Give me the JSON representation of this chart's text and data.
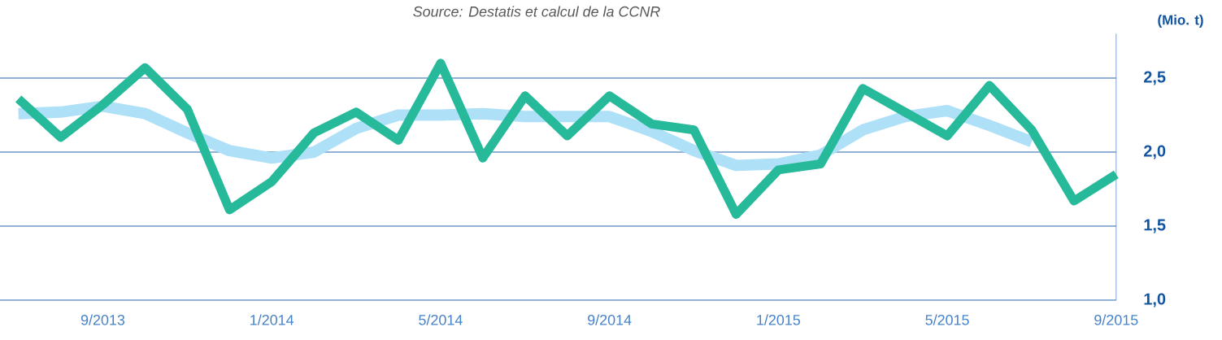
{
  "chart_data": {
    "type": "line",
    "annotations": [
      "Source: Destatis et calcul de la CCNR"
    ],
    "ylabel": "(Mio. t)",
    "categories": [
      null,
      null,
      "9/2013",
      null,
      null,
      null,
      "1/2014",
      null,
      null,
      null,
      "5/2014",
      null,
      null,
      null,
      "9/2014",
      null,
      null,
      null,
      "1/2015",
      null,
      null,
      null,
      "5/2015",
      null,
      null,
      null,
      "9/2015"
    ],
    "series": [
      {
        "color": "#aee0f8",
        "values": [
          2.26,
          2.27,
          2.31,
          2.26,
          2.13,
          2.01,
          1.96,
          2.0,
          2.16,
          2.25,
          2.25,
          2.26,
          2.24,
          2.24,
          2.24,
          2.14,
          2.01,
          1.91,
          1.92,
          1.98,
          2.15,
          2.24,
          2.28,
          2.18,
          2.07,
          null,
          null
        ]
      },
      {
        "color": "#26b99a",
        "values": [
          2.36,
          2.1,
          2.32,
          2.57,
          2.29,
          1.61,
          1.8,
          2.13,
          2.27,
          2.08,
          2.6,
          1.96,
          2.38,
          2.11,
          2.38,
          2.19,
          2.15,
          1.58,
          1.88,
          1.92,
          2.43,
          2.27,
          2.11,
          2.45,
          2.15,
          1.67,
          1.85
        ]
      }
    ],
    "ylim": [
      1.0,
      2.8
    ],
    "yticks": [
      {
        "value": 1.0,
        "label": "1,0"
      },
      {
        "value": 1.5,
        "label": "1,5"
      },
      {
        "value": 2.0,
        "label": "2,0"
      },
      {
        "value": 2.5,
        "label": "2,5"
      }
    ],
    "grid": "y",
    "legend": false,
    "marker": "none",
    "line_style": "solid"
  }
}
